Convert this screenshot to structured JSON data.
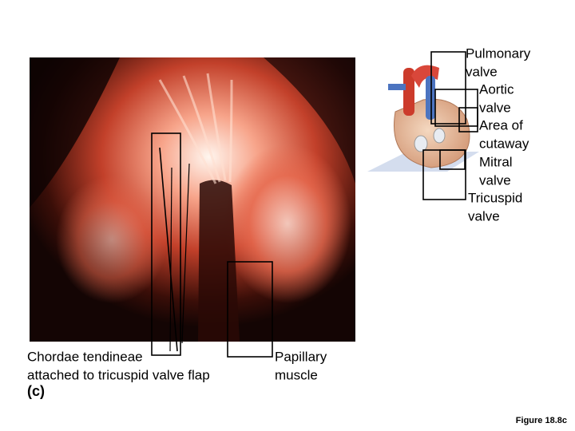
{
  "labels": [
    {
      "lines": [
        "Pulmonary",
        "valve"
      ]
    },
    {
      "lines": [
        "Aortic",
        "valve"
      ]
    },
    {
      "lines": [
        "Area of",
        "cutaway"
      ]
    },
    {
      "lines": [
        "Mitral",
        "valve"
      ]
    },
    {
      "lines": [
        "Tricuspid",
        "valve"
      ]
    },
    {
      "lines": [
        "Chordae tendineae",
        "attached to tricuspid valve flap"
      ]
    },
    {
      "lines": [
        "Papillary",
        "muscle"
      ]
    }
  ],
  "panel": "(c)",
  "figure": "Figure 18.8c"
}
